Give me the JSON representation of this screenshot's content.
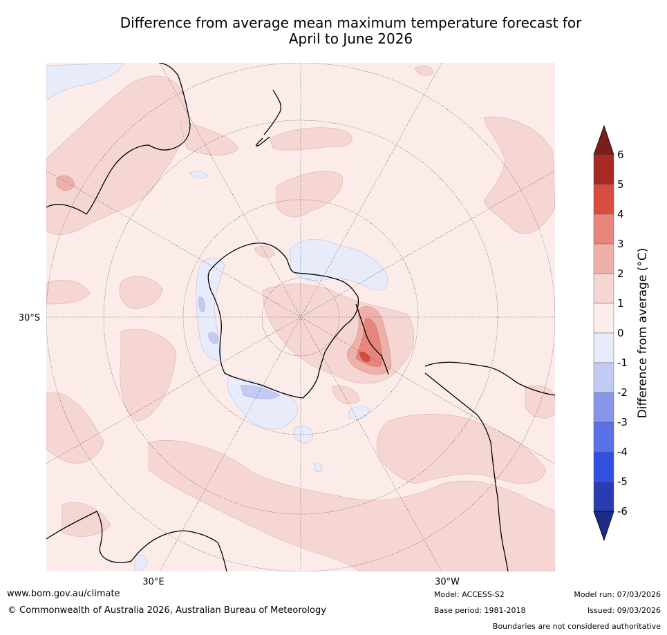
{
  "title": {
    "line1": "Difference from average mean maximum temperature forecast for",
    "line2": "April to June 2026"
  },
  "map_labels": {
    "lat_label": "30°S",
    "lon_label_left": "30°E",
    "lon_label_right": "30°W"
  },
  "colorbar": {
    "label": "Difference from average (°C)",
    "ticks": [
      "6",
      "5",
      "4",
      "3",
      "2",
      "1",
      "0",
      "-1",
      "-2",
      "-3",
      "-4",
      "-5",
      "-6"
    ],
    "colors_top_to_bottom": [
      "#a62a22",
      "#d94c40",
      "#e8857c",
      "#eeb1a9",
      "#f5d6d3",
      "#fbecea",
      "#e7ebfa",
      "#c3cbf2",
      "#8796ea",
      "#5a72e6",
      "#3050e2",
      "#2a3db0"
    ],
    "over_color": "#7b1e1a",
    "under_color": "#1c2b85"
  },
  "palette": {
    "ocean": "#fbecea",
    "warm1": "#f5d6d3",
    "warm2": "#eeb1a9",
    "warm3": "#e8857c",
    "warm4": "#d94c40",
    "cool1": "#e7ebfa",
    "cool2": "#c3cbf2",
    "cool3": "#8796ea"
  },
  "footer": {
    "url": "www.bom.gov.au/climate",
    "copyright": "© Commonwealth of Australia 2026, Australian Bureau of Meteorology",
    "model": "Model: ACCESS-S2",
    "base_period": "Base period: 1981-2018",
    "model_run": "Model run: 07/03/2026",
    "issued": "Issued: 09/03/2026",
    "boundaries": "Boundaries are not considered authoritative"
  }
}
